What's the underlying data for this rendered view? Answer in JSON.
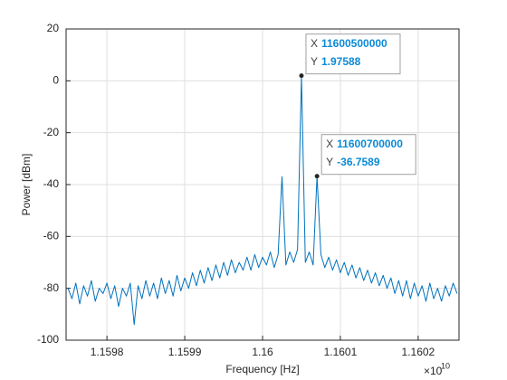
{
  "chart_data": {
    "type": "line",
    "xlabel": "Frequency [Hz]",
    "ylabel": "Power [dBm]",
    "x_scale_label": "×10",
    "x_scale_exponent": "10",
    "color": "#0072bd",
    "grid": true,
    "xlim": [
      11597475000,
      11602525000
    ],
    "ylim": [
      -100,
      20
    ],
    "xticks": [
      {
        "value": 11598000000,
        "label": "1.1598"
      },
      {
        "value": 11599000000,
        "label": "1.1599"
      },
      {
        "value": 11600000000,
        "label": "1.16"
      },
      {
        "value": 11601000000,
        "label": "1.1601"
      },
      {
        "value": 11602000000,
        "label": "1.1602"
      }
    ],
    "yticks": [
      -100,
      -80,
      -60,
      -40,
      -20,
      0,
      20
    ],
    "x": [
      11597500000,
      11597550000,
      11597600000,
      11597650000,
      11597700000,
      11597750000,
      11597800000,
      11597850000,
      11597900000,
      11597950000,
      11598000000,
      11598050000,
      11598100000,
      11598150000,
      11598200000,
      11598250000,
      11598300000,
      11598350000,
      11598400000,
      11598450000,
      11598500000,
      11598550000,
      11598600000,
      11598650000,
      11598700000,
      11598750000,
      11598800000,
      11598850000,
      11598900000,
      11598950000,
      11599000000,
      11599050000,
      11599100000,
      11599150000,
      11599200000,
      11599250000,
      11599300000,
      11599350000,
      11599400000,
      11599450000,
      11599500000,
      11599550000,
      11599600000,
      11599650000,
      11599700000,
      11599750000,
      11599800000,
      11599850000,
      11599900000,
      11599950000,
      11600000000,
      11600050000,
      11600100000,
      11600150000,
      11600200000,
      11600250000,
      11600300000,
      11600350000,
      11600400000,
      11600450000,
      11600500000,
      11600550000,
      11600600000,
      11600650000,
      11600700000,
      11600750000,
      11600800000,
      11600850000,
      11600900000,
      11600950000,
      11601000000,
      11601050000,
      11601100000,
      11601150000,
      11601200000,
      11601250000,
      11601300000,
      11601350000,
      11601400000,
      11601450000,
      11601500000,
      11601550000,
      11601600000,
      11601650000,
      11601700000,
      11601750000,
      11601800000,
      11601850000,
      11601900000,
      11601950000,
      11602000000,
      11602050000,
      11602100000,
      11602150000,
      11602200000,
      11602250000,
      11602300000,
      11602350000,
      11602400000,
      11602450000,
      11602500000
    ],
    "values": [
      -80,
      -84,
      -78,
      -86,
      -79,
      -83,
      -77,
      -85,
      -80,
      -82,
      -78,
      -84,
      -79,
      -87,
      -80,
      -83,
      -78,
      -94,
      -79,
      -84,
      -77,
      -83,
      -78,
      -84,
      -76,
      -82,
      -77,
      -83,
      -75,
      -81,
      -76,
      -80,
      -74,
      -79,
      -73,
      -78,
      -72,
      -77,
      -71,
      -76,
      -70,
      -75,
      -69,
      -74,
      -70,
      -73,
      -68,
      -73,
      -67,
      -72,
      -68,
      -71,
      -66,
      -72,
      -67,
      -37,
      -71,
      -66,
      -70,
      -65,
      1.97588,
      -70,
      -66,
      -71,
      -36.7589,
      -67,
      -72,
      -68,
      -73,
      -69,
      -74,
      -70,
      -75,
      -71,
      -76,
      -72,
      -77,
      -73,
      -78,
      -74,
      -79,
      -75,
      -80,
      -76,
      -82,
      -77,
      -83,
      -77,
      -84,
      -78,
      -83,
      -79,
      -85,
      -78,
      -84,
      -80,
      -85,
      -79,
      -83,
      -78,
      -82
    ],
    "datatip_x_label": "X",
    "datatip_y_label": "Y",
    "datatips": [
      {
        "x": 11600500000,
        "y": 1.97588
      },
      {
        "x": 11600700000,
        "y": -36.7589
      }
    ]
  }
}
